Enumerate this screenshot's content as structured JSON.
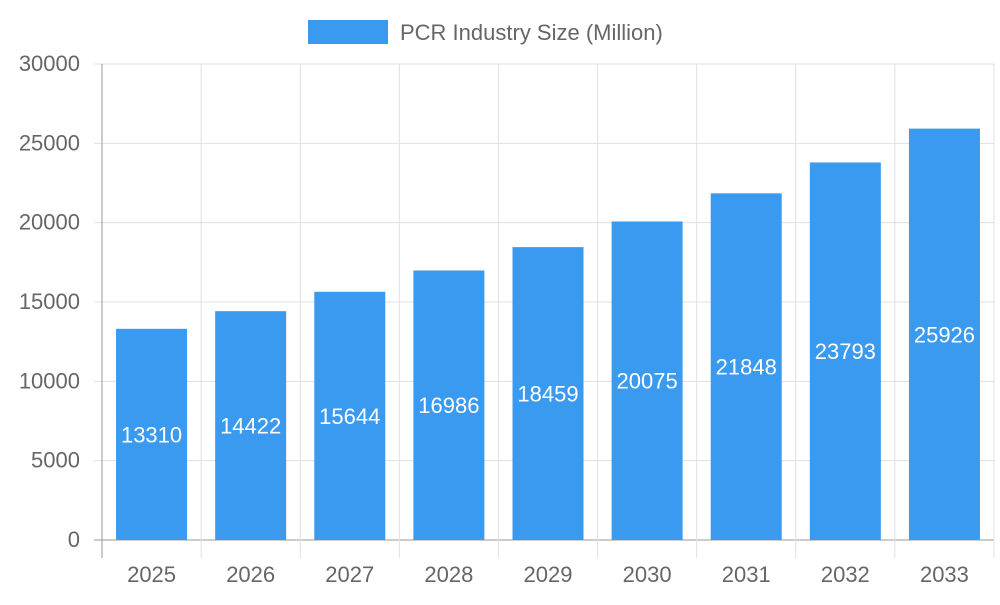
{
  "chart_data": {
    "type": "bar",
    "categories": [
      "2025",
      "2026",
      "2027",
      "2028",
      "2029",
      "2030",
      "2031",
      "2032",
      "2033"
    ],
    "series": [
      {
        "name": "PCR Industry Size (Million)",
        "values": [
          13310,
          14422,
          15644,
          16986,
          18459,
          20075,
          21848,
          23793,
          25926
        ]
      }
    ],
    "ylim": [
      0,
      30000
    ],
    "yticks": [
      0,
      5000,
      10000,
      15000,
      20000,
      25000,
      30000
    ],
    "grid": true,
    "legend": "top-center",
    "data_labels": "inside-center",
    "colors": {
      "bar": "#3a9aef",
      "grid": "#e0e0e0",
      "axis": "#999999",
      "text": "#666666",
      "label": "#ffffff"
    }
  }
}
